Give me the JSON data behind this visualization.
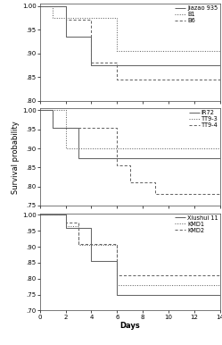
{
  "panel1": {
    "ylim": [
      0.8,
      1.005
    ],
    "yticks": [
      0.8,
      0.85,
      0.9,
      0.95,
      1.0
    ],
    "yticklabels": [
      ".80",
      ".85",
      ".90",
      ".95",
      "1.00"
    ],
    "lines": [
      {
        "label": "Jiazao 935",
        "style": "solid",
        "x": [
          0,
          2,
          2,
          4,
          4,
          14
        ],
        "y": [
          1.0,
          1.0,
          0.935,
          0.935,
          0.875,
          0.875
        ]
      },
      {
        "label": "B1",
        "style": "dotted",
        "x": [
          0,
          1,
          1,
          6,
          6,
          14
        ],
        "y": [
          1.0,
          1.0,
          0.975,
          0.975,
          0.905,
          0.905
        ]
      },
      {
        "label": "B6",
        "style": "dashed",
        "x": [
          0,
          2,
          2,
          4,
          4,
          6,
          6,
          14
        ],
        "y": [
          1.0,
          1.0,
          0.97,
          0.97,
          0.88,
          0.88,
          0.845,
          0.845
        ]
      }
    ]
  },
  "panel2": {
    "ylim": [
      0.75,
      1.005
    ],
    "yticks": [
      0.75,
      0.8,
      0.85,
      0.9,
      0.95,
      1.0
    ],
    "yticklabels": [
      ".75",
      ".80",
      ".85",
      ".90",
      ".95",
      "1.00"
    ],
    "lines": [
      {
        "label": "IR72",
        "style": "solid",
        "x": [
          0,
          1,
          1,
          3,
          3,
          14
        ],
        "y": [
          1.0,
          1.0,
          0.955,
          0.955,
          0.875,
          0.875
        ]
      },
      {
        "label": "TT9-3",
        "style": "dotted",
        "x": [
          0,
          2,
          2,
          14
        ],
        "y": [
          1.0,
          1.0,
          0.9,
          0.9
        ]
      },
      {
        "label": "TT9-4",
        "style": "dashed",
        "x": [
          0,
          1,
          1,
          6,
          6,
          7,
          7,
          9,
          9,
          14
        ],
        "y": [
          1.0,
          1.0,
          0.955,
          0.955,
          0.855,
          0.855,
          0.81,
          0.81,
          0.78,
          0.78
        ]
      }
    ]
  },
  "panel3": {
    "ylim": [
      0.7,
      1.005
    ],
    "yticks": [
      0.7,
      0.75,
      0.8,
      0.85,
      0.9,
      0.95,
      1.0
    ],
    "yticklabels": [
      ".70",
      ".75",
      ".80",
      ".85",
      ".90",
      ".95",
      "1.00"
    ],
    "lines": [
      {
        "label": "Xiushui 11",
        "style": "solid",
        "x": [
          0,
          2,
          2,
          4,
          4,
          6,
          6,
          14
        ],
        "y": [
          1.0,
          1.0,
          0.96,
          0.96,
          0.855,
          0.855,
          0.75,
          0.75
        ]
      },
      {
        "label": "KMD1",
        "style": "dotted",
        "x": [
          0,
          2,
          2,
          3,
          3,
          6,
          6,
          14
        ],
        "y": [
          1.0,
          1.0,
          0.965,
          0.965,
          0.905,
          0.905,
          0.78,
          0.78
        ]
      },
      {
        "label": "KMD2",
        "style": "dashed",
        "x": [
          0,
          2,
          2,
          3,
          3,
          6,
          6,
          14
        ],
        "y": [
          1.0,
          1.0,
          0.975,
          0.975,
          0.91,
          0.91,
          0.81,
          0.81
        ]
      }
    ]
  },
  "xlabel": "Days",
  "ylabel": "Survival probability",
  "xlim": [
    0,
    14
  ],
  "xticks": [
    0,
    2,
    4,
    6,
    8,
    10,
    12,
    14
  ],
  "xticklabels": [
    "0",
    "2",
    "4",
    "6",
    "8",
    "10",
    "12",
    "14"
  ],
  "line_color": "#666666",
  "tick_fontsize": 5.0,
  "label_fontsize": 6.0,
  "legend_fontsize": 4.8
}
